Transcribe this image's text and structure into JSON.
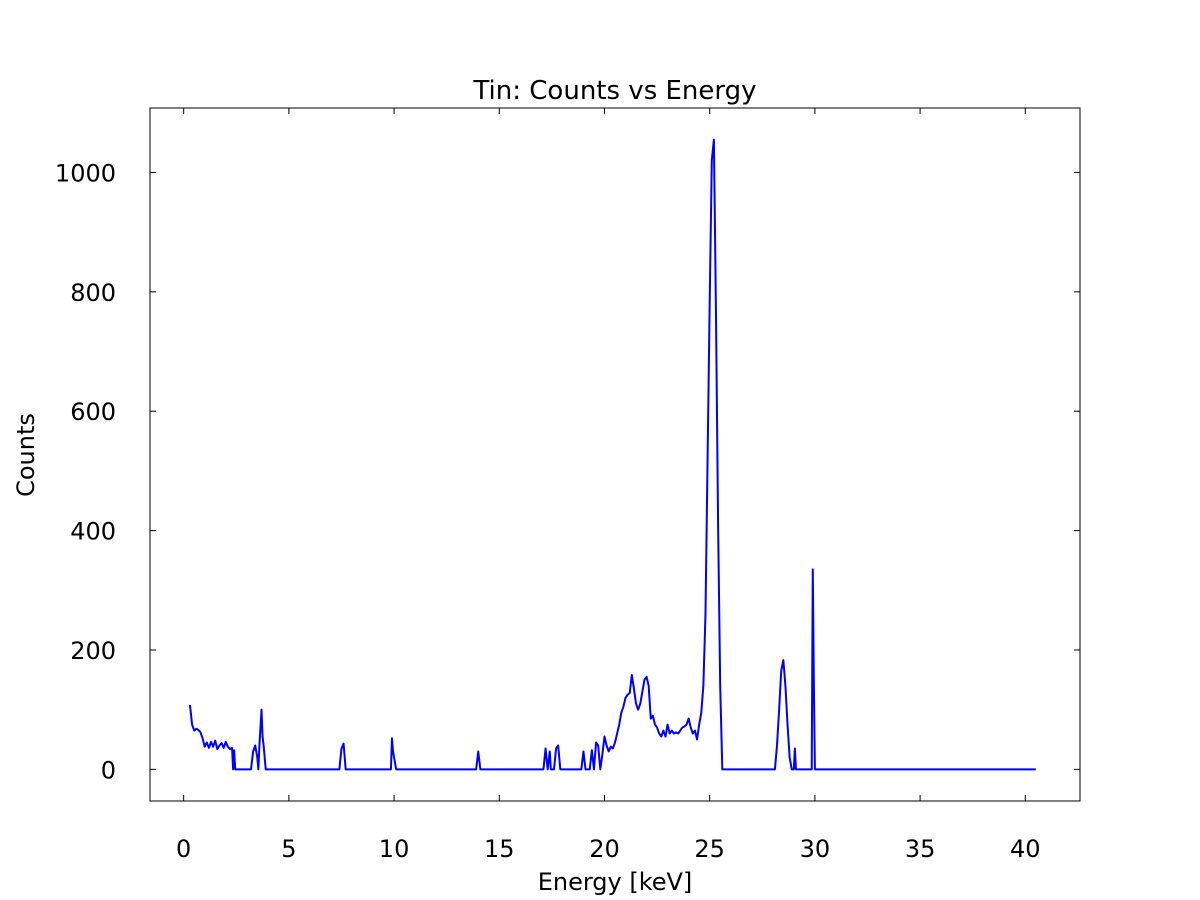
{
  "chart_data": {
    "type": "line",
    "title": "Tin: Counts vs Energy",
    "xlabel": "Energy [keV]",
    "ylabel": "Counts",
    "xlim": [
      -1.6,
      42.6
    ],
    "ylim": [
      -53,
      1108
    ],
    "xticks": [
      0,
      5,
      10,
      15,
      20,
      25,
      30,
      35,
      40
    ],
    "yticks": [
      0,
      200,
      400,
      600,
      800,
      1000
    ],
    "grid": false,
    "series": [
      {
        "color": "#0000ff",
        "x": [
          0.3,
          0.4,
          0.5,
          0.6,
          0.7,
          0.8,
          0.9,
          1.0,
          1.1,
          1.2,
          1.3,
          1.4,
          1.5,
          1.6,
          1.7,
          1.8,
          1.9,
          2.0,
          2.1,
          2.2,
          2.3,
          2.35,
          2.4,
          2.45,
          2.5,
          3.2,
          3.3,
          3.4,
          3.5,
          3.55,
          3.6,
          3.7,
          3.75,
          3.8,
          3.9,
          3.95,
          4.0,
          4.1,
          7.4,
          7.5,
          7.6,
          7.7,
          9.85,
          9.9,
          9.95,
          10.1,
          13.9,
          14.0,
          14.1,
          17.1,
          17.2,
          17.3,
          17.4,
          17.45,
          17.6,
          17.7,
          17.8,
          17.9,
          18.9,
          19.0,
          19.1,
          19.3,
          19.4,
          19.5,
          19.6,
          19.7,
          19.8,
          19.9,
          20.0,
          20.1,
          20.2,
          20.3,
          20.4,
          20.5,
          20.6,
          20.7,
          20.8,
          20.9,
          21.0,
          21.1,
          21.2,
          21.3,
          21.4,
          21.5,
          21.6,
          21.7,
          21.8,
          21.9,
          22.0,
          22.1,
          22.2,
          22.3,
          22.4,
          22.5,
          22.6,
          22.7,
          22.8,
          22.9,
          23.0,
          23.1,
          23.2,
          23.3,
          23.4,
          23.5,
          23.6,
          23.7,
          23.8,
          23.9,
          24.0,
          24.1,
          24.2,
          24.3,
          24.4,
          24.5,
          24.6,
          24.7,
          24.8,
          24.9,
          25.0,
          25.1,
          25.2,
          25.3,
          25.4,
          25.5,
          25.6,
          25.7,
          28.1,
          28.2,
          28.3,
          28.4,
          28.5,
          28.6,
          28.7,
          28.8,
          28.9,
          29.0,
          29.05,
          29.1,
          29.8,
          29.85,
          29.9,
          29.95,
          30.0,
          40.5
        ],
        "y": [
          108,
          75,
          65,
          68,
          66,
          62,
          52,
          38,
          45,
          36,
          46,
          38,
          48,
          34,
          40,
          44,
          36,
          46,
          38,
          34,
          36,
          0,
          32,
          0,
          0,
          0,
          30,
          40,
          20,
          0,
          40,
          100,
          55,
          40,
          0,
          0,
          0,
          0,
          0,
          35,
          43,
          0,
          0,
          52,
          30,
          0,
          0,
          30,
          0,
          0,
          35,
          0,
          30,
          0,
          0,
          35,
          40,
          0,
          0,
          30,
          0,
          0,
          32,
          0,
          45,
          40,
          0,
          25,
          55,
          40,
          30,
          38,
          35,
          45,
          60,
          75,
          95,
          105,
          120,
          125,
          128,
          158,
          135,
          110,
          100,
          110,
          130,
          150,
          155,
          140,
          85,
          90,
          75,
          70,
          60,
          55,
          65,
          55,
          75,
          60,
          65,
          60,
          62,
          60,
          65,
          70,
          72,
          75,
          85,
          70,
          60,
          65,
          50,
          75,
          95,
          140,
          260,
          520,
          780,
          1020,
          1055,
          760,
          410,
          140,
          0,
          0,
          0,
          40,
          100,
          165,
          183,
          140,
          75,
          20,
          0,
          0,
          35,
          0,
          0,
          0,
          335,
          150,
          0,
          0
        ]
      }
    ]
  }
}
